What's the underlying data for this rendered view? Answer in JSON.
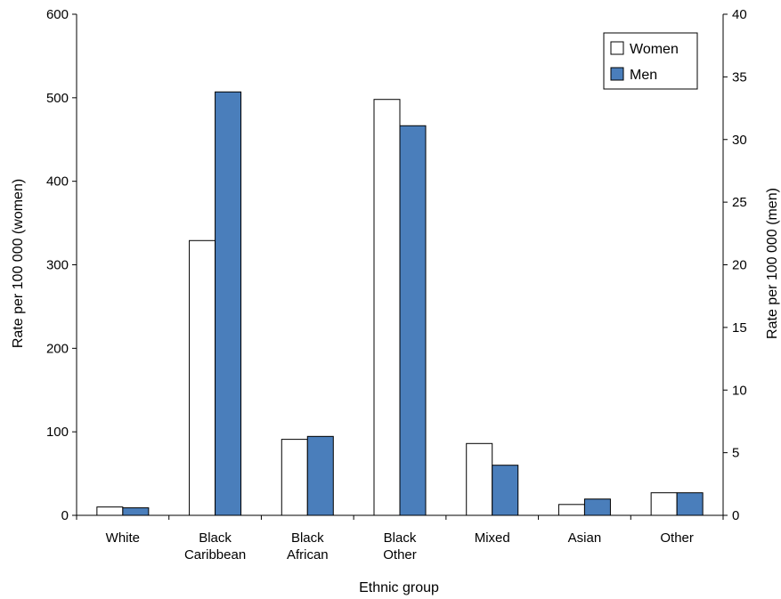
{
  "chart_data": {
    "type": "bar",
    "categories": [
      [
        "White"
      ],
      [
        "Black",
        "Caribbean"
      ],
      [
        "Black",
        "African"
      ],
      [
        "Black",
        "Other"
      ],
      [
        "Mixed"
      ],
      [
        "Asian"
      ],
      [
        "Other"
      ]
    ],
    "series": [
      {
        "name": "Women",
        "axis": "left",
        "color": "#ffffff",
        "values": [
          10,
          329,
          91,
          498,
          86,
          13,
          27
        ]
      },
      {
        "name": "Men",
        "axis": "right",
        "color": "#4a7ebb",
        "values": [
          0.6,
          33.8,
          6.3,
          31.1,
          4.0,
          1.3,
          1.8
        ]
      }
    ],
    "xlabel": "Ethnic group",
    "ylabel_left": "Rate per 100 000 (women)",
    "ylabel_right": "Rate per 100 000 (men)",
    "ylim_left": [
      0,
      600
    ],
    "yticks_left": [
      0,
      100,
      200,
      300,
      400,
      500,
      600
    ],
    "ylim_right": [
      0,
      40
    ],
    "yticks_right": [
      0,
      5,
      10,
      15,
      20,
      25,
      30,
      35,
      40
    ],
    "grid": false,
    "legend_position": "top-right"
  }
}
